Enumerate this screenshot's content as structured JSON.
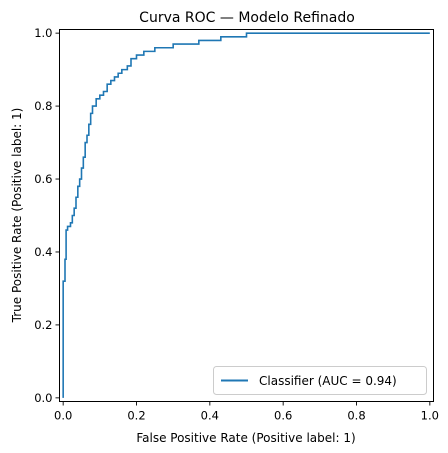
{
  "chart_data": {
    "type": "line",
    "title": "Curva ROC — Modelo Refinado",
    "xlabel": "False Positive Rate (Positive label: 1)",
    "ylabel": "True Positive Rate (Positive label: 1)",
    "xlim": [
      -0.01,
      1.01
    ],
    "ylim": [
      -0.01,
      1.01
    ],
    "xticks": [
      "0.0",
      "0.2",
      "0.4",
      "0.6",
      "0.8",
      "1.0"
    ],
    "yticks": [
      "0.0",
      "0.2",
      "0.4",
      "0.6",
      "0.8",
      "1.0"
    ],
    "grid": false,
    "legend_position": "lower-right",
    "series": [
      {
        "name": "Classifier (AUC = 0.94)",
        "color": "#1f77b4",
        "x": [
          0.0,
          0.0,
          0.005,
          0.005,
          0.008,
          0.008,
          0.012,
          0.012,
          0.02,
          0.02,
          0.025,
          0.025,
          0.03,
          0.03,
          0.035,
          0.035,
          0.04,
          0.04,
          0.045,
          0.045,
          0.05,
          0.05,
          0.055,
          0.055,
          0.06,
          0.06,
          0.065,
          0.065,
          0.07,
          0.07,
          0.075,
          0.075,
          0.08,
          0.08,
          0.09,
          0.09,
          0.1,
          0.1,
          0.11,
          0.11,
          0.12,
          0.12,
          0.13,
          0.13,
          0.14,
          0.14,
          0.15,
          0.15,
          0.16,
          0.16,
          0.175,
          0.175,
          0.185,
          0.185,
          0.2,
          0.2,
          0.22,
          0.22,
          0.25,
          0.25,
          0.3,
          0.3,
          0.37,
          0.37,
          0.43,
          0.43,
          0.5,
          0.5,
          1.0
        ],
        "y": [
          0.0,
          0.32,
          0.32,
          0.38,
          0.38,
          0.46,
          0.46,
          0.47,
          0.47,
          0.48,
          0.48,
          0.5,
          0.5,
          0.52,
          0.52,
          0.55,
          0.55,
          0.58,
          0.58,
          0.6,
          0.6,
          0.63,
          0.63,
          0.66,
          0.66,
          0.7,
          0.7,
          0.72,
          0.72,
          0.75,
          0.75,
          0.78,
          0.78,
          0.8,
          0.8,
          0.82,
          0.82,
          0.83,
          0.83,
          0.84,
          0.84,
          0.86,
          0.86,
          0.87,
          0.87,
          0.88,
          0.88,
          0.89,
          0.89,
          0.9,
          0.9,
          0.91,
          0.91,
          0.93,
          0.93,
          0.94,
          0.94,
          0.95,
          0.95,
          0.96,
          0.96,
          0.97,
          0.97,
          0.98,
          0.98,
          0.99,
          0.99,
          1.0,
          1.0
        ]
      }
    ]
  }
}
